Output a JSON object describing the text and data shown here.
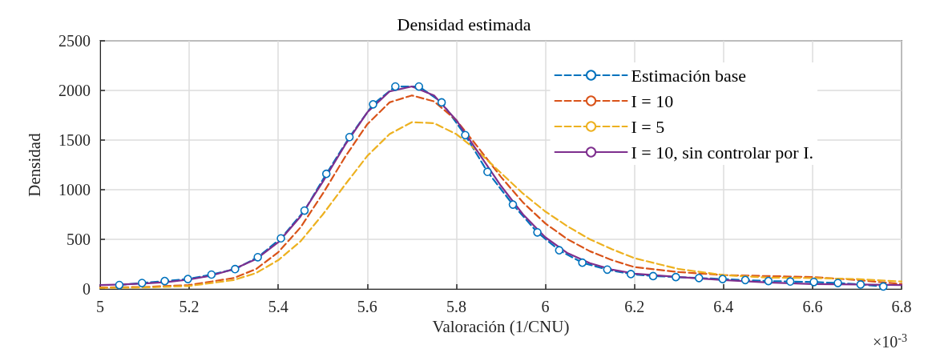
{
  "chart_data": {
    "type": "line",
    "title": "Densidad estimada",
    "xlabel": "Valoración (1/CNU)",
    "ylabel": "Densidad",
    "annotations": [
      "×10$^{-3}$"
    ],
    "xlim": [
      5,
      6.8
    ],
    "xticks": [
      5,
      5.2,
      5.4,
      5.6,
      5.8,
      6,
      6.2,
      6.4,
      6.6,
      6.8
    ],
    "ylim": [
      0,
      2500
    ],
    "yticks": [
      0,
      500,
      1000,
      1500,
      2000,
      2500
    ],
    "grid": true,
    "legend": "top right",
    "series": [
      {
        "name": "Estimación base",
        "color": "#0072bd",
        "marker": "circle",
        "line_style": "dashed",
        "x": [
          5.043,
          5.094,
          5.145,
          5.197,
          5.25,
          5.303,
          5.354,
          5.406,
          5.459,
          5.508,
          5.56,
          5.613,
          5.663,
          5.716,
          5.767,
          5.82,
          5.87,
          5.927,
          5.982,
          6.031,
          6.083,
          6.139,
          6.192,
          6.242,
          6.293,
          6.345,
          6.398,
          6.449,
          6.501,
          6.55,
          6.603,
          6.657,
          6.708,
          6.759
        ],
        "values": [
          40,
          60,
          80,
          100,
          145,
          200,
          320,
          510,
          790,
          1160,
          1530,
          1860,
          2040,
          2040,
          1880,
          1550,
          1180,
          850,
          570,
          390,
          265,
          195,
          150,
          130,
          120,
          110,
          100,
          90,
          80,
          75,
          70,
          60,
          45,
          25
        ]
      },
      {
        "name": "I = 10",
        "color": "#d95319",
        "marker": "none",
        "line_style": "dashed",
        "x": [
          5,
          5.1,
          5.2,
          5.3,
          5.35,
          5.4,
          5.45,
          5.5,
          5.55,
          5.6,
          5.65,
          5.7,
          5.75,
          5.8,
          5.85,
          5.9,
          5.95,
          6,
          6.05,
          6.1,
          6.15,
          6.2,
          6.3,
          6.4,
          6.5,
          6.6,
          6.7,
          6.8
        ],
        "values": [
          15,
          20,
          40,
          110,
          200,
          370,
          620,
          960,
          1330,
          1660,
          1880,
          1950,
          1890,
          1700,
          1420,
          1130,
          870,
          660,
          500,
          380,
          290,
          220,
          170,
          140,
          130,
          120,
          90,
          50
        ]
      },
      {
        "name": "I = 5",
        "color": "#edb120",
        "marker": "none",
        "line_style": "dashed",
        "x": [
          5,
          5.1,
          5.2,
          5.3,
          5.35,
          5.4,
          5.45,
          5.5,
          5.55,
          5.6,
          5.65,
          5.7,
          5.75,
          5.8,
          5.85,
          5.9,
          5.95,
          6,
          6.05,
          6.1,
          6.15,
          6.2,
          6.3,
          6.4,
          6.5,
          6.6,
          6.7,
          6.8
        ],
        "values": [
          10,
          15,
          30,
          90,
          160,
          290,
          480,
          750,
          1050,
          1340,
          1560,
          1680,
          1670,
          1560,
          1380,
          1170,
          960,
          780,
          630,
          500,
          400,
          310,
          200,
          140,
          115,
          110,
          100,
          75
        ]
      },
      {
        "name": "I = 10, sin controlar por I.",
        "color": "#7e2f8e",
        "marker": "none",
        "line_style": "solid",
        "x": [
          5,
          5.05,
          5.1,
          5.15,
          5.2,
          5.25,
          5.3,
          5.35,
          5.4,
          5.45,
          5.5,
          5.55,
          5.6,
          5.65,
          5.7,
          5.75,
          5.8,
          5.85,
          5.9,
          5.95,
          6,
          6.05,
          6.1,
          6.15,
          6.2,
          6.3,
          6.4,
          6.5,
          6.6,
          6.7,
          6.8
        ],
        "values": [
          40,
          45,
          55,
          70,
          95,
          135,
          200,
          300,
          470,
          730,
          1080,
          1450,
          1780,
          1990,
          2040,
          1950,
          1700,
          1370,
          1040,
          750,
          520,
          360,
          260,
          195,
          155,
          120,
          90,
          65,
          50,
          45,
          40
        ]
      }
    ]
  }
}
